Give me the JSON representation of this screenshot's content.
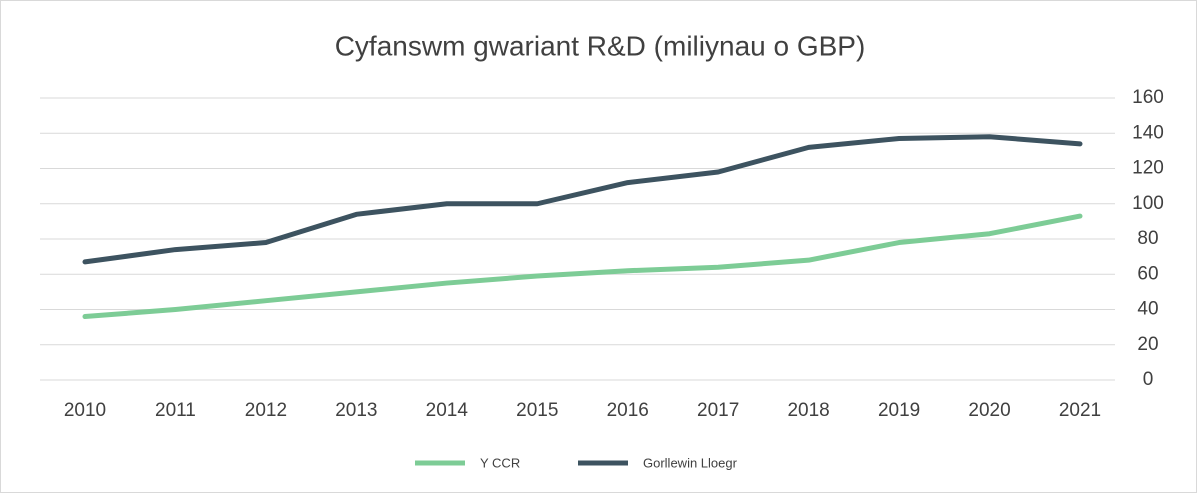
{
  "chart_data": {
    "type": "line",
    "title": "Cyfanswm gwariant R&D (miliynau o GBP)",
    "categories": [
      "2010",
      "2011",
      "2012",
      "2013",
      "2014",
      "2015",
      "2016",
      "2017",
      "2018",
      "2019",
      "2020",
      "2021"
    ],
    "series": [
      {
        "name": "Y CCR",
        "color": "#7dcc96",
        "values": [
          36,
          40,
          45,
          50,
          55,
          59,
          62,
          64,
          68,
          78,
          83,
          93
        ]
      },
      {
        "name": "Gorllewin Lloegr",
        "color": "#3d5360",
        "values": [
          67,
          74,
          78,
          94,
          100,
          100,
          112,
          118,
          132,
          137,
          138,
          134
        ]
      }
    ],
    "ylim": [
      0,
      160
    ],
    "yticks": [
      0,
      20,
      40,
      60,
      80,
      100,
      120,
      140,
      160
    ],
    "grid": true,
    "legend": "bottom"
  }
}
